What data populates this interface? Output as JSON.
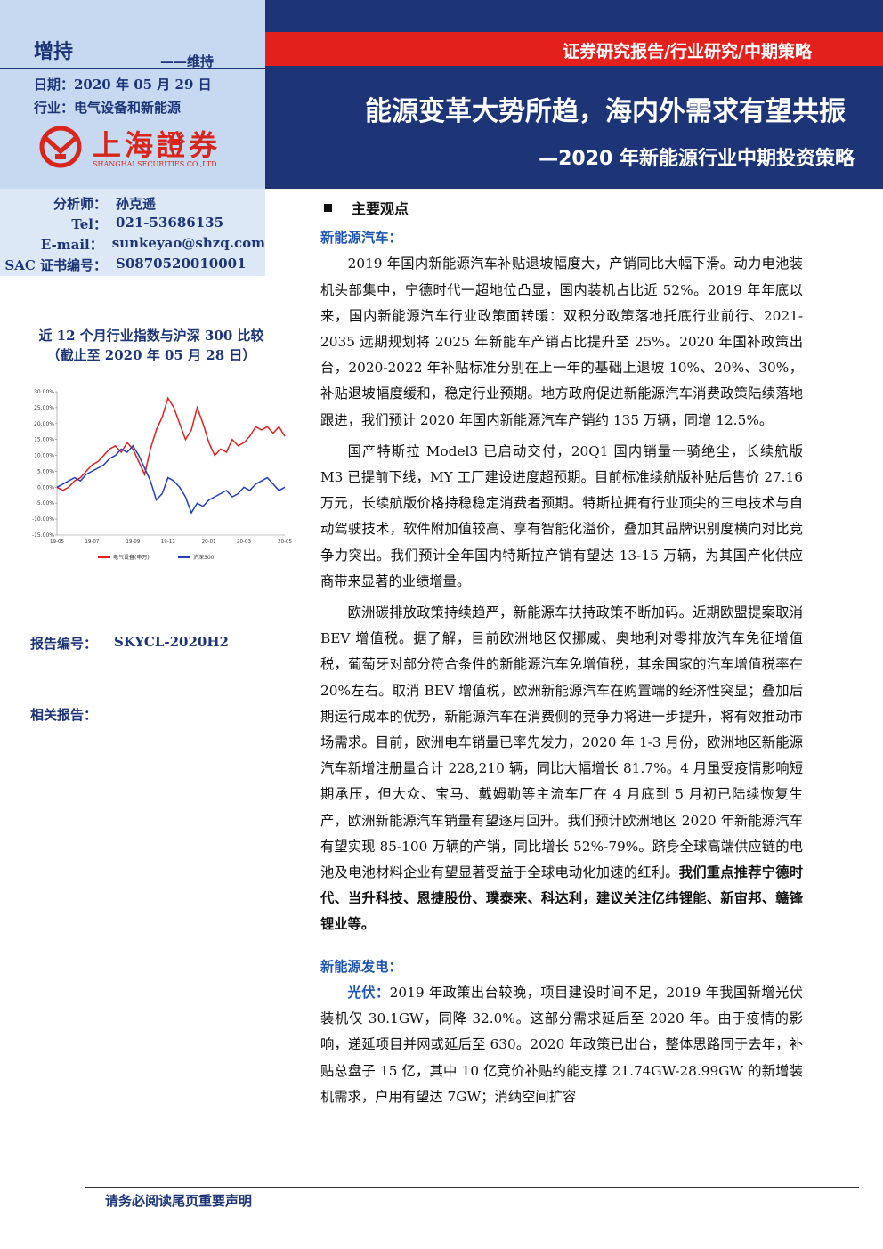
{
  "header": {
    "rating": "增持",
    "rating_change": "——维持",
    "date": "日期：2020 年 05 月 29 日",
    "industry": "行业：电气设备和新能源",
    "logo_cn": "上海證券",
    "logo_en": "SHANGHAI SECURITIES CO.,LTD.",
    "report_type": "证券研究报告/行业研究/中期策略",
    "title": "能源变革大势所趋，海内外需求有望共振",
    "subtitle": "—2020 年新能源行业中期投资策略"
  },
  "analyst": [
    {
      "label": "分析师：",
      "value": "孙克遥"
    },
    {
      "label": "Tel：",
      "value": "021-53686135"
    },
    {
      "label": "E-mail：",
      "value": "sunkeyao@shzq.com"
    },
    {
      "label": "SAC 证书编号：",
      "value": "S0870520010001"
    }
  ],
  "chart_data": {
    "type": "line",
    "title": "近 12 个月行业指数与沪深 300 比较",
    "subtitle": "（截止至 2020 年 05 月 28 日）",
    "categories": [
      "19-05",
      null,
      null,
      null,
      null,
      null,
      "19-07",
      null,
      null,
      null,
      null,
      null,
      null,
      "19-09",
      null,
      null,
      null,
      null,
      null,
      "19-11",
      null,
      null,
      null,
      null,
      null,
      null,
      "20-01",
      null,
      null,
      null,
      null,
      null,
      "20-03",
      null,
      null,
      null,
      null,
      null,
      null,
      "20-05"
    ],
    "series": [
      {
        "name": "电气设备(申万)",
        "color": "#e02020",
        "values": [
          0,
          -1,
          0,
          2,
          3,
          5,
          7,
          8,
          10,
          12,
          13,
          11,
          14,
          12,
          8,
          4,
          12,
          18,
          22,
          28,
          25,
          20,
          15,
          18,
          25,
          20,
          14,
          10,
          12,
          11,
          15,
          13,
          14,
          16,
          19,
          18,
          19,
          17,
          19,
          16
        ]
      },
      {
        "name": "沪深300",
        "color": "#1f3fbf",
        "values": [
          0,
          1,
          2,
          3,
          2,
          4,
          5,
          6,
          7,
          9,
          10,
          12,
          11,
          13,
          10,
          6,
          2,
          -4,
          -2,
          3,
          2,
          0,
          -3,
          -8,
          -5,
          -6,
          -4,
          -3,
          -2,
          -1,
          -3,
          -2,
          0,
          -1,
          1,
          2,
          3,
          1,
          -1,
          0
        ]
      }
    ],
    "ylim": [
      -15,
      30
    ],
    "yticks": [
      {
        "value": 30,
        "label": "30.00%"
      },
      {
        "value": 25,
        "label": "25.00%"
      },
      {
        "value": 20,
        "label": "20.00%"
      },
      {
        "value": 15,
        "label": "15.00%"
      },
      {
        "value": 10,
        "label": "10.00%"
      },
      {
        "value": 5,
        "label": "5.00%"
      },
      {
        "value": 0,
        "label": "0.00%"
      },
      {
        "value": -5,
        "label": "-5.00%"
      },
      {
        "value": -10,
        "label": "-10.00%"
      },
      {
        "value": -15,
        "label": "-15.00%"
      }
    ]
  },
  "sidebar": {
    "report_no_label": "报告编号：",
    "report_no": "SKYCL-2020H2",
    "related_label": "相关报告："
  },
  "body": {
    "main_heading": "主要观点",
    "sections": [
      {
        "heading": "新能源汽车：",
        "paragraphs": [
          {
            "text": "2019 年国内新能源汽车补贴退坡幅度大，产销同比大幅下滑。动力电池装机头部集中，宁德时代一超地位凸显，国内装机占比近 52%。2019 年年底以来，国内新能源汽车行业政策面转暖：双积分政策落地托底行业前行、2021-2035 远期规划将 2025 年新能车产销占比提升至 25%。2020 年国补政策出台，2020-2022 年补贴标准分别在上一年的基础上退坡 10%、20%、30%，补贴退坡幅度缓和，稳定行业预期。地方政府促进新能源汽车消费政策陆续落地跟进，我们预计 2020 年国内新能源汽车产销约 135 万辆，同增 12.5%。"
          },
          {
            "text": "国产特斯拉 Model3 已启动交付，20Q1 国内销量一骑绝尘，长续航版 M3 已提前下线，MY 工厂建设进度超预期。目前标准续航版补贴后售价 27.16 万元，长续航版价格持稳稳定消费者预期。特斯拉拥有行业顶尖的三电技术与自动驾驶技术，软件附加值较高、享有智能化溢价，叠加其品牌识别度横向对比竞争力突出。我们预计全年国内特斯拉产销有望达 13-15 万辆，为其国产化供应商带来显著的业绩增量。"
          },
          {
            "text": "欧洲碳排放政策持续趋严，新能源车扶持政策不断加码。近期欧盟提案取消 BEV 增值税。据了解，目前欧洲地区仅挪威、奥地利对零排放汽车免征增值税，葡萄牙对部分符合条件的新能源汽车免增值税，其余国家的汽车增值税率在 20%左右。取消 BEV 增值税，欧洲新能源汽车在购置端的经济性突显；叠加后期运行成本的优势，新能源汽车在消费侧的竞争力将进一步提升，将有效推动市场需求。目前，欧洲电车销量已率先发力，2020 年 1-3 月份，欧洲地区新能源汽车新增注册量合计 228,210 辆，同比大幅增长 81.7%。4 月虽受疫情影响短期承压，但大众、宝马、戴姆勒等主流车厂在 4 月底到 5 月初已陆续恢复生产，欧洲新能源汽车销量有望逐月回升。我们预计欧洲地区 2020 年新能源汽车有望实现 85-100 万辆的产销，同比增长 52%-79%。跻身全球高端供应链的电池及电池材料企业有望显著受益于全球电动化加速的红利。",
            "bold": "我们重点推荐宁德时代、当升科技、恩捷股份、璞泰来、科达利，建议关注亿纬锂能、新宙邦、赣锋锂业等。"
          }
        ]
      },
      {
        "heading": "新能源发电：",
        "paragraphs": [
          {
            "lead": "光伏：",
            "text": "2019 年政策出台较晚，项目建设时间不足，2019 年我国新增光伏装机仅 30.1GW，同降 32.0%。这部分需求延后至 2020 年。由于疫情的影响，递延项目并网或延后至 630。2020 年政策已出台，整体思路同于去年，补贴总盘子 15 亿，其中 10 亿竞价补贴约能支撑 21.74GW-28.99GW 的新增装机需求，户用有望达 7GW；消纳空间扩容"
          }
        ]
      }
    ]
  },
  "footer": {
    "notice": "请务必阅读尾页重要声明"
  }
}
